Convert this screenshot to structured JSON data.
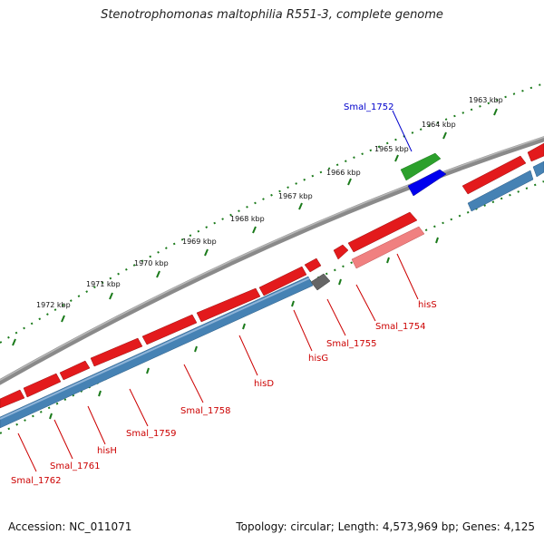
{
  "title": "Stenotrophomonas maltophilia R551-3, complete genome",
  "footer": {
    "accession": "Accession: NC_011071",
    "topology": "Topology: circular; Length: 4,573,969 bp; Genes: 4,125"
  },
  "colors": {
    "forward_gene": "#e31a1c",
    "reverse_gene": "#4682b4",
    "rna_gene": "#2ca02c",
    "selected_gene": "#0000ee",
    "pseudo_gene": "#f08080",
    "other_gene": "#666666",
    "backbone": "#808080",
    "tick": "#1a7a1a"
  },
  "scale_labels": [
    "1963 kbp",
    "1964 kbp",
    "1965 kbp",
    "1966 kbp",
    "1967 kbp",
    "1968 kbp",
    "1969 kbp",
    "1970 kbp",
    "1971 kbp",
    "1972 kbp"
  ],
  "gene_labels": [
    {
      "name": "Smal_1752",
      "color": "#0000cc"
    },
    {
      "name": "hisS",
      "color": "#cc0000"
    },
    {
      "name": "Smal_1754",
      "color": "#cc0000"
    },
    {
      "name": "Smal_1755",
      "color": "#cc0000"
    },
    {
      "name": "hisG",
      "color": "#cc0000"
    },
    {
      "name": "hisD",
      "color": "#cc0000"
    },
    {
      "name": "Smal_1758",
      "color": "#cc0000"
    },
    {
      "name": "Smal_1759",
      "color": "#cc0000"
    },
    {
      "name": "hisH",
      "color": "#cc0000"
    },
    {
      "name": "Smal_1761",
      "color": "#cc0000"
    },
    {
      "name": "Smal_1762",
      "color": "#cc0000"
    }
  ]
}
